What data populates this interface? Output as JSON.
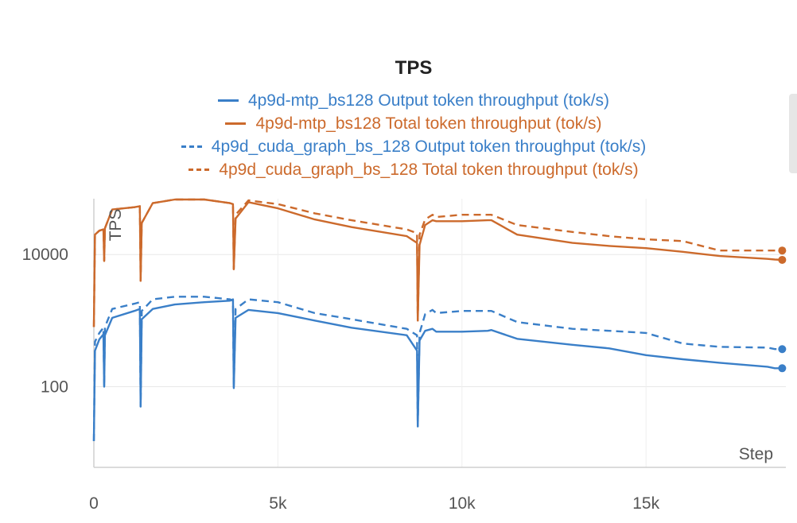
{
  "chart_data": {
    "type": "line",
    "title": "TPS",
    "ylabel": "TPS",
    "xlabel": "Step",
    "yscale": "log",
    "xlim": [
      0,
      18800
    ],
    "ylim": [
      6,
      70000
    ],
    "xticks": [
      {
        "v": 0,
        "label": "0"
      },
      {
        "v": 5000,
        "label": "5k"
      },
      {
        "v": 10000,
        "label": "10k"
      },
      {
        "v": 15000,
        "label": "15k"
      }
    ],
    "yticks": [
      {
        "v": 100,
        "label": "100"
      },
      {
        "v": 10000,
        "label": "10000"
      }
    ],
    "legend_position": "top-center",
    "grid": true,
    "series": [
      {
        "name": "4p9d-mtp_bs128 Output token throughput (tok/s)",
        "color": "#3a7fc8",
        "dash": "solid",
        "x": [
          0,
          30,
          150,
          260,
          280,
          300,
          500,
          1100,
          1250,
          1270,
          1300,
          1600,
          2200,
          3000,
          3700,
          3780,
          3800,
          3850,
          4200,
          5000,
          6000,
          7000,
          8500,
          8780,
          8800,
          8850,
          9000,
          9200,
          9300,
          10000,
          10700,
          10800,
          11500,
          13000,
          14000,
          15000,
          16000,
          17000,
          18300,
          18500,
          18700
        ],
        "y": [
          15,
          350,
          520,
          620,
          100,
          600,
          1100,
          1400,
          1500,
          50,
          1050,
          1500,
          1750,
          1900,
          2000,
          2100,
          95,
          1100,
          1450,
          1300,
          1000,
          780,
          600,
          350,
          25,
          500,
          700,
          750,
          680,
          680,
          700,
          720,
          530,
          430,
          380,
          300,
          260,
          230,
          200,
          190,
          190
        ]
      },
      {
        "name": "4p9d-mtp_bs128 Total token throughput (tok/s)",
        "color": "#cc6a2c",
        "dash": "solid",
        "x": [
          0,
          30,
          150,
          260,
          280,
          300,
          500,
          1100,
          1250,
          1270,
          1300,
          1600,
          2200,
          3000,
          3700,
          3780,
          3800,
          3850,
          4200,
          5000,
          6000,
          7000,
          8500,
          8780,
          8800,
          8850,
          9000,
          9200,
          9300,
          10000,
          10700,
          10800,
          11500,
          13000,
          14000,
          15000,
          16000,
          17000,
          18300,
          18500,
          18700
        ],
        "y": [
          800,
          20000,
          23000,
          24000,
          8000,
          25000,
          48000,
          52000,
          54000,
          4000,
          30000,
          60000,
          68000,
          68000,
          60000,
          58000,
          6000,
          35000,
          62000,
          50000,
          34000,
          26000,
          19000,
          15000,
          1000,
          14000,
          28000,
          33000,
          32000,
          32000,
          33000,
          33000,
          20000,
          15000,
          13500,
          12500,
          11000,
          9500,
          8600,
          8400,
          8300
        ]
      },
      {
        "name": "4p9d_cuda_graph_bs_128 Output token throughput (tok/s)",
        "color": "#3a7fc8",
        "dash": "dashed",
        "x": [
          0,
          30,
          150,
          260,
          280,
          300,
          500,
          1100,
          1250,
          1270,
          1300,
          1600,
          2200,
          3000,
          3700,
          3780,
          3800,
          3850,
          4200,
          5000,
          6000,
          7000,
          8500,
          8780,
          8800,
          8850,
          9000,
          9200,
          9300,
          10000,
          10700,
          10800,
          11500,
          13000,
          14000,
          15000,
          16000,
          17000,
          18300,
          18500,
          18700
        ],
        "y": [
          15,
          480,
          650,
          780,
          100,
          800,
          1500,
          1800,
          1900,
          50,
          1400,
          2100,
          2300,
          2300,
          2100,
          2000,
          95,
          1500,
          2100,
          1900,
          1300,
          1050,
          750,
          600,
          25,
          650,
          1250,
          1450,
          1300,
          1400,
          1400,
          1400,
          950,
          750,
          700,
          650,
          450,
          400,
          390,
          370,
          370
        ]
      },
      {
        "name": "4p9d_cuda_graph_bs_128 Total token throughput (tok/s)",
        "color": "#cc6a2c",
        "dash": "dashed",
        "x": [
          0,
          30,
          150,
          260,
          280,
          300,
          500,
          1100,
          1250,
          1270,
          1300,
          1600,
          2200,
          3000,
          3700,
          3780,
          3800,
          3850,
          4200,
          5000,
          6000,
          7000,
          8500,
          8780,
          8800,
          8850,
          9000,
          9200,
          9300,
          10000,
          10700,
          10800,
          11500,
          13000,
          14000,
          15000,
          16000,
          17000,
          18300,
          18500,
          18700
        ],
        "y": [
          800,
          20000,
          23000,
          24000,
          8000,
          25000,
          48000,
          52000,
          54000,
          4000,
          30000,
          60000,
          68000,
          68000,
          60000,
          58000,
          6000,
          40000,
          66000,
          58000,
          42000,
          33000,
          24000,
          21000,
          1000,
          20000,
          34000,
          40000,
          37000,
          40000,
          40000,
          40000,
          28000,
          22000,
          19000,
          17000,
          16000,
          11500,
          11500,
          11500,
          11500
        ]
      }
    ]
  }
}
